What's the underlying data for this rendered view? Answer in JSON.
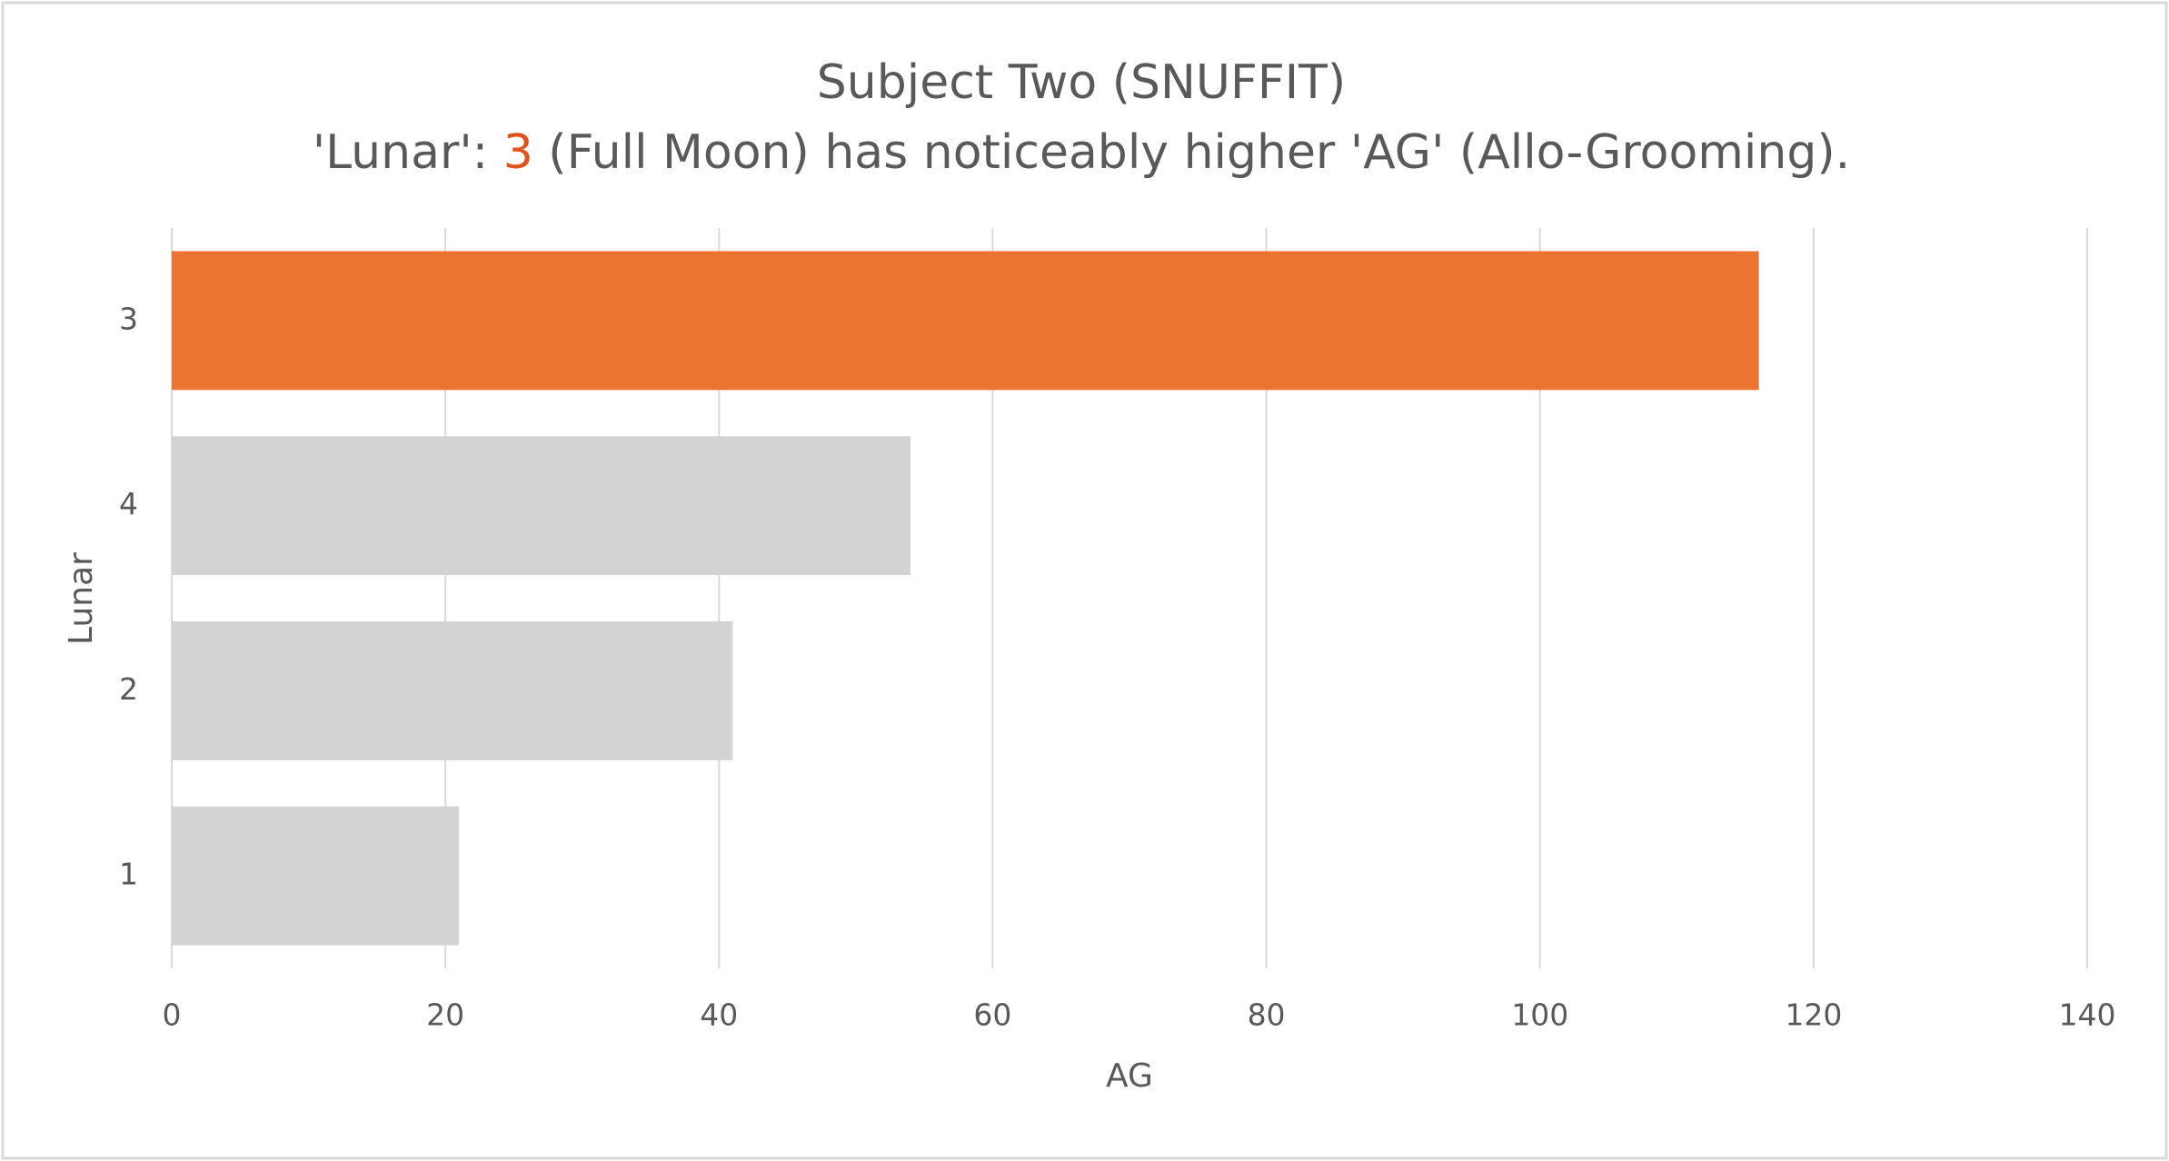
{
  "chart_data": {
    "type": "hbar",
    "title": "Subject Two (SNUFFIT)",
    "subtitle": [
      {
        "text": "'Lunar': ",
        "color": "#595959"
      },
      {
        "text": "3",
        "color": "#e0541c"
      },
      {
        "text": " (Full Moon) has noticeably higher 'AG' (Allo-Grooming).",
        "color": "#595959"
      }
    ],
    "x_label": "AG",
    "y_label": "Lunar",
    "categories": [
      "3",
      "4",
      "2",
      "1"
    ],
    "values": [
      116,
      54,
      41,
      21
    ],
    "colors": [
      "#ed7331",
      "#d3d3d3",
      "#d3d3d3",
      "#d3d3d3"
    ],
    "xlim": [
      0,
      140
    ],
    "xticks": [
      0,
      20,
      40,
      60,
      80,
      100,
      120,
      140
    ],
    "grid": true
  }
}
